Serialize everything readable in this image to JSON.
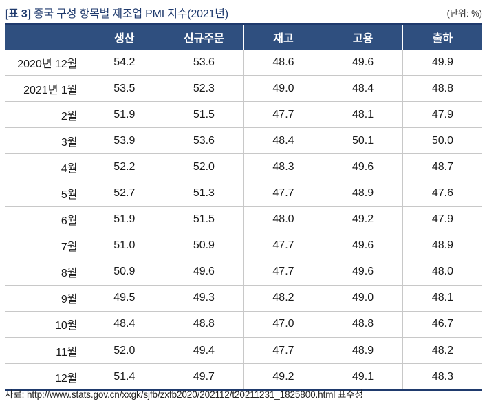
{
  "header": {
    "tag": "[표 3]",
    "title": "중국 구성 항목별 제조업 PMI 지수(2021년)",
    "unit": "(단위: %)"
  },
  "table": {
    "columns": [
      "",
      "생산",
      "신규주문",
      "재고",
      "고용",
      "출하"
    ],
    "rows": [
      {
        "label": "2020년 12월",
        "values": [
          "54.2",
          "53.6",
          "48.6",
          "49.6",
          "49.9"
        ]
      },
      {
        "label": "2021년 1월",
        "values": [
          "53.5",
          "52.3",
          "49.0",
          "48.4",
          "48.8"
        ]
      },
      {
        "label": "2월",
        "values": [
          "51.9",
          "51.5",
          "47.7",
          "48.1",
          "47.9"
        ]
      },
      {
        "label": "3월",
        "values": [
          "53.9",
          "53.6",
          "48.4",
          "50.1",
          "50.0"
        ]
      },
      {
        "label": "4월",
        "values": [
          "52.2",
          "52.0",
          "48.3",
          "49.6",
          "48.7"
        ]
      },
      {
        "label": "5월",
        "values": [
          "52.7",
          "51.3",
          "47.7",
          "48.9",
          "47.6"
        ]
      },
      {
        "label": "6월",
        "values": [
          "51.9",
          "51.5",
          "48.0",
          "49.2",
          "47.9"
        ]
      },
      {
        "label": "7월",
        "values": [
          "51.0",
          "50.9",
          "47.7",
          "49.6",
          "48.9"
        ]
      },
      {
        "label": "8월",
        "values": [
          "50.9",
          "49.6",
          "47.7",
          "49.6",
          "48.0"
        ]
      },
      {
        "label": "9월",
        "values": [
          "49.5",
          "49.3",
          "48.2",
          "49.0",
          "48.1"
        ]
      },
      {
        "label": "10월",
        "values": [
          "48.4",
          "48.8",
          "47.0",
          "48.8",
          "46.7"
        ]
      },
      {
        "label": "11월",
        "values": [
          "52.0",
          "49.4",
          "47.7",
          "48.9",
          "48.2"
        ]
      },
      {
        "label": "12월",
        "values": [
          "51.4",
          "49.7",
          "49.2",
          "49.1",
          "48.3"
        ]
      }
    ]
  },
  "footer": {
    "source": "자료: http://www.stats.gov.cn/xxgk/sjfb/zxfb2020/202112/t20211231_1825800.html 표수정"
  },
  "colors": {
    "header_bg": "#2f4f7f",
    "title_text": "#1f3a6d"
  }
}
